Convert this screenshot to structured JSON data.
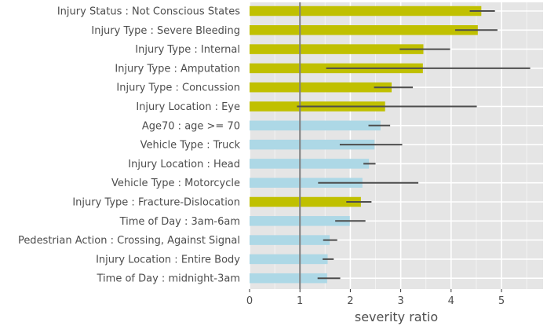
{
  "chart_data": {
    "type": "bar",
    "orientation": "horizontal",
    "xlabel": "severity ratio",
    "xlim": [
      0,
      5.75
    ],
    "xticks": [
      0,
      1,
      2,
      3,
      4,
      5
    ],
    "reference_line": 1,
    "grid": true,
    "colors": {
      "group_a": "#c0c000",
      "group_b": "#add8e6",
      "background": "#e5e5e5",
      "error": "#4d4d4d",
      "reference": "#808080"
    },
    "categories": [
      "Injury Status : Not Conscious States",
      "Injury Type : Severe Bleeding",
      "Injury Type : Internal",
      "Injury Type : Amputation",
      "Injury Type : Concussion",
      "Injury Location : Eye",
      "Age70 : age >= 70",
      "Vehicle Type : Truck",
      "Injury Location : Head",
      "Vehicle Type : Motorcycle",
      "Injury Type : Fracture-Dislocation",
      "Time of Day : 3am-6am",
      "Pedestrian Action : Crossing, Against Signal",
      "Injury Location : Entire Body",
      "Time of Day : midnight-3am"
    ],
    "values": [
      4.6,
      4.53,
      3.45,
      3.44,
      2.82,
      2.69,
      2.6,
      2.48,
      2.37,
      2.24,
      2.21,
      1.99,
      1.59,
      1.55,
      1.54
    ],
    "error_low": [
      4.37,
      4.08,
      2.98,
      1.52,
      2.47,
      0.94,
      2.36,
      1.79,
      2.26,
      1.36,
      1.92,
      1.7,
      1.46,
      1.45,
      1.35
    ],
    "error_high": [
      4.87,
      4.92,
      3.98,
      5.57,
      3.24,
      4.51,
      2.79,
      3.03,
      2.5,
      3.35,
      2.42,
      2.3,
      1.74,
      1.67,
      1.8
    ],
    "groups": [
      "a",
      "a",
      "a",
      "a",
      "a",
      "a",
      "b",
      "b",
      "b",
      "b",
      "a",
      "b",
      "b",
      "b",
      "b"
    ]
  }
}
